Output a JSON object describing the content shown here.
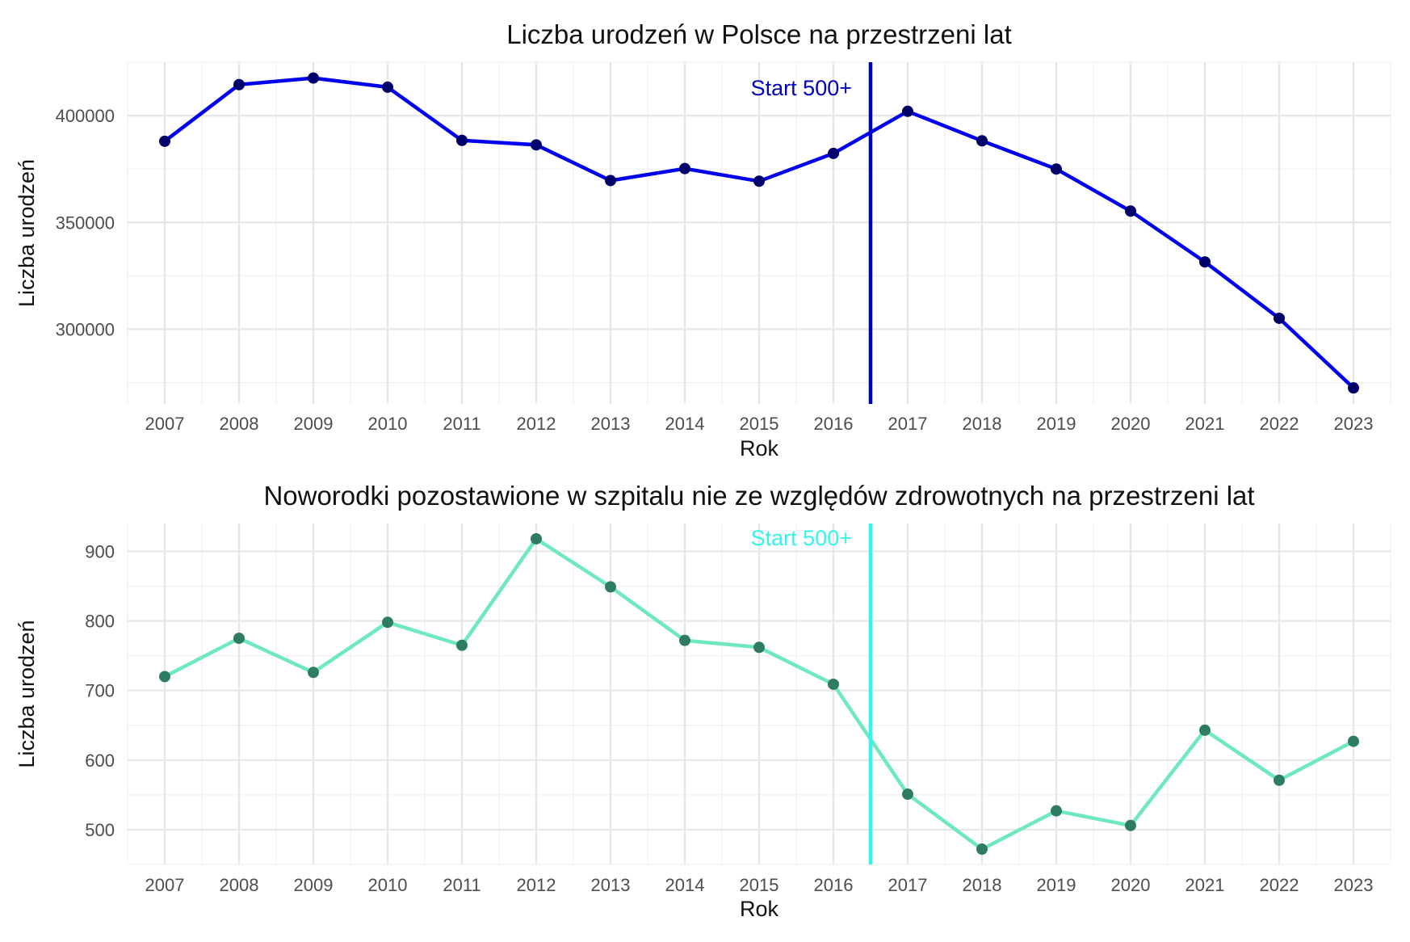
{
  "chart_data": [
    {
      "type": "line",
      "title": "Liczba urodzeń w Polsce na przestrzeni lat",
      "xlabel": "Rok",
      "ylabel": "Liczba urodzeń",
      "x": [
        2007,
        2008,
        2009,
        2010,
        2011,
        2012,
        2013,
        2014,
        2015,
        2016,
        2017,
        2018,
        2019,
        2020,
        2021,
        2022,
        2023
      ],
      "x_tick_labels": [
        "2007",
        "2008",
        "2009",
        "2010",
        "2011",
        "2012",
        "2013",
        "2014",
        "2015",
        "2016",
        "2017",
        "2018",
        "2019",
        "2020",
        "2021",
        "2022",
        "2023"
      ],
      "y_ticks": [
        300000,
        350000,
        400000
      ],
      "y_tick_labels": [
        "300000",
        "350000",
        "400000"
      ],
      "ylim": [
        265000,
        425000
      ],
      "xlim": [
        2006.5,
        2023.5
      ],
      "grid": true,
      "series": [
        {
          "values": [
            388000,
            414500,
            417600,
            413300,
            388400,
            386300,
            369600,
            375200,
            369300,
            382300,
            402000,
            388200,
            375000,
            355300,
            331500,
            305100,
            272500
          ],
          "line_color": "#0000ee",
          "point_color": "#00006b"
        }
      ],
      "vline": {
        "x": 2016.5,
        "color": "#0000bb"
      },
      "annotation": {
        "text": "Start 500+",
        "x": 2016.25,
        "y": 414500,
        "color": "#0000bb"
      }
    },
    {
      "type": "line",
      "title": "Noworodki pozostawione w szpitalu nie ze względów zdrowotnych na przestrzeni lat",
      "xlabel": "Rok",
      "ylabel": "Liczba urodzeń",
      "x": [
        2007,
        2008,
        2009,
        2010,
        2011,
        2012,
        2013,
        2014,
        2015,
        2016,
        2017,
        2018,
        2019,
        2020,
        2021,
        2022,
        2023
      ],
      "x_tick_labels": [
        "2007",
        "2008",
        "2009",
        "2010",
        "2011",
        "2012",
        "2013",
        "2014",
        "2015",
        "2016",
        "2017",
        "2018",
        "2019",
        "2020",
        "2021",
        "2022",
        "2023"
      ],
      "y_ticks": [
        500,
        600,
        700,
        800,
        900
      ],
      "y_tick_labels": [
        "500",
        "600",
        "700",
        "800",
        "900"
      ],
      "ylim": [
        450,
        940
      ],
      "xlim": [
        2006.5,
        2023.5
      ],
      "grid": true,
      "series": [
        {
          "values": [
            720,
            775,
            726,
            798,
            765,
            918,
            849,
            772,
            762,
            709,
            551,
            472,
            527,
            506,
            643,
            571,
            627
          ],
          "line_color": "#6ee8c0",
          "point_color": "#2e7d63"
        }
      ],
      "vline": {
        "x": 2016.5,
        "color": "#33f5ee"
      },
      "annotation": {
        "text": "Start 500+",
        "x": 2016.25,
        "y": 918,
        "color": "#33f5ee"
      }
    }
  ]
}
